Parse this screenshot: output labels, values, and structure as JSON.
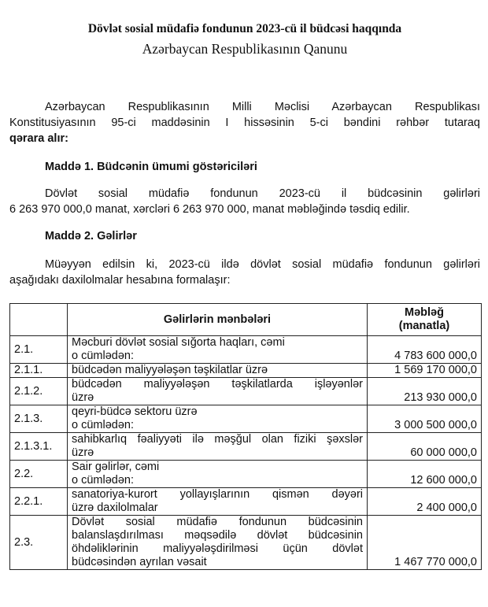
{
  "document": {
    "title": "Dövlət sosial müdafiə fondunun 2023-cü il büdcəsi haqqında",
    "subtitle": "Azərbaycan Respublikasının Qanunu",
    "preamble": {
      "lines": [
        "Azərbaycan Respublikasının Milli Məclisi Azərbaycan Respublikası",
        "Konstitusiyasının 95-ci maddəsinin I hissəsinin 5-ci bəndini rəhbər tutaraq"
      ],
      "bold_end": "qərara alır:"
    },
    "article1": {
      "heading": "Maddə 1. Büdcənin ümumi göstəriciləri",
      "lines": [
        "Dövlət sosial müdafiə fondunun 2023-cü il büdcəsinin gəlirləri",
        "6 263 970 000,0 manat, xərcləri 6 263 970 000, manat məbləğində təsdiq edilir."
      ]
    },
    "article2": {
      "heading": "Maddə 2. Gəlirlər",
      "lines": [
        "Müəyyən edilsin ki, 2023-cü ildə dövlət sosial müdafiə fondunun gəlirləri",
        "aşağıdakı daxilolmalar hesabına formalaşır:"
      ]
    },
    "table": {
      "headers": [
        "",
        "Gəlirlərin mənbələri",
        "Məbləğ",
        "(manatla)"
      ],
      "rows": [
        {
          "code": "2.1.",
          "lines": [
            "Məcburi dövlət sosial sığorta haqları, cəmi",
            "o cümlədən:"
          ],
          "amount": "4 783 600 000,0"
        },
        {
          "code": "2.1.1.",
          "lines": [
            "büdcədən maliyyələşən təşkilatlar üzrə"
          ],
          "amount": "1 569 170 000,0"
        },
        {
          "code": "2.1.2.",
          "lines": [
            "büdcədən maliyyələşən təşkilatlarda işləyənlər",
            "üzrə"
          ],
          "amount": "213 930 000,0"
        },
        {
          "code": "2.1.3.",
          "lines": [
            "qeyri-büdcə sektoru üzrə",
            "o cümlədən:"
          ],
          "amount": "3 000 500 000,0"
        },
        {
          "code": "2.1.3.1.",
          "lines": [
            "sahibkarlıq fəaliyyəti ilə məşğul olan fiziki şəxslər",
            "üzrə"
          ],
          "amount": "60 000 000,0"
        },
        {
          "code": "2.2.",
          "lines": [
            "Sair gəlirlər, cəmi",
            "o cümlədən:"
          ],
          "amount": "12 600 000,0"
        },
        {
          "code": "2.2.1.",
          "lines": [
            "sanatoriya-kurort yollayışlarının qismən dəyəri",
            "üzrə daxilolmalar"
          ],
          "amount": "2 400 000,0"
        },
        {
          "code": "2.3.",
          "lines": [
            "Dövlət sosial müdafiə fondunun büdcəsinin",
            "balanslaşdırılması məqsədilə dövlət büdcəsinin",
            "öhdəliklərinin maliyyələşdirilməsi üçün dövlət",
            "büdcəsindən ayrılan vəsait"
          ],
          "amount": "1 467 770 000,0"
        }
      ]
    }
  }
}
